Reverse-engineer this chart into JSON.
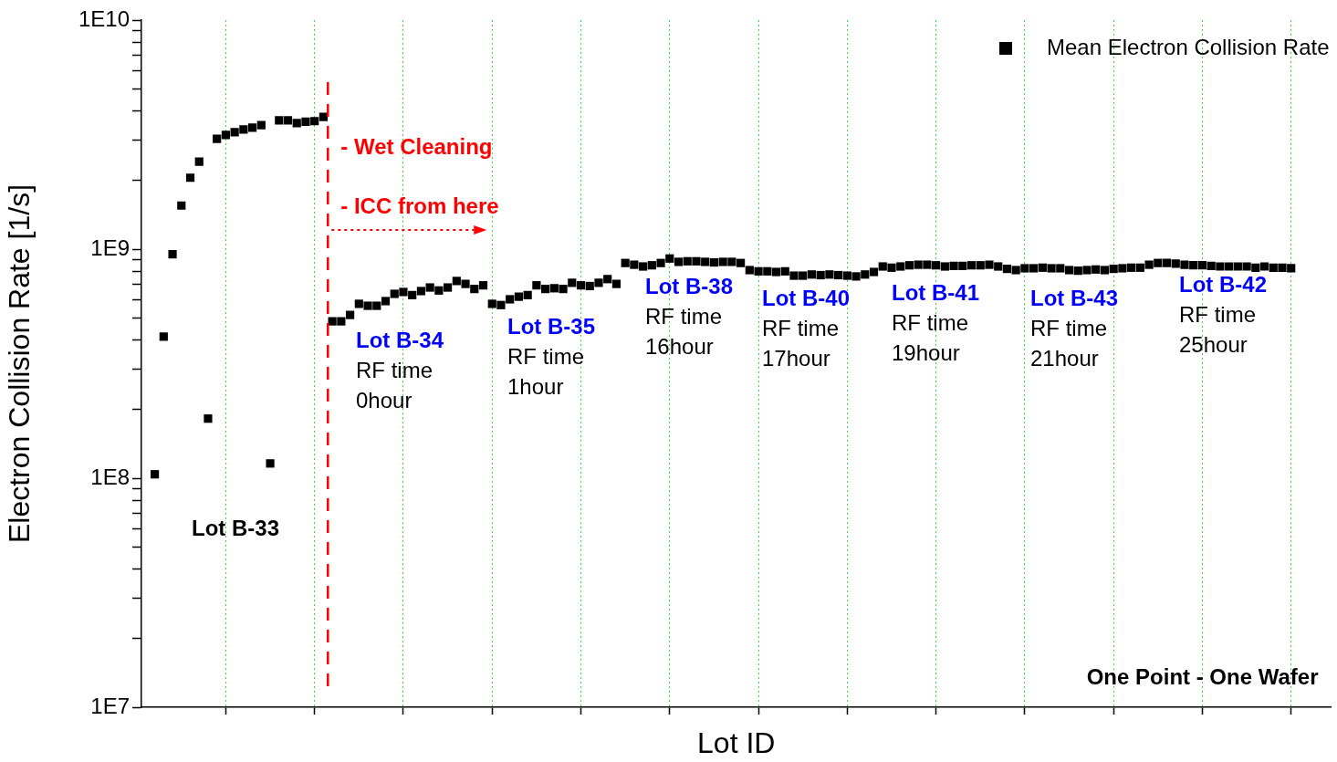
{
  "chart_data": {
    "type": "scatter",
    "xlabel": "Lot ID",
    "ylabel": "Electron Collision Rate [1/s]",
    "log": "y",
    "grid": "x",
    "legend": "top right",
    "marker": "square",
    "tick_labels": "y",
    "categories": [
      null,
      null,
      null,
      null,
      null,
      null,
      null,
      null,
      null,
      null,
      null,
      null,
      null,
      null,
      null,
      null,
      null,
      null,
      null,
      null,
      null,
      null,
      null,
      null,
      null,
      null,
      null,
      null,
      null,
      null,
      null,
      null,
      null,
      null,
      null,
      null,
      null,
      null,
      null,
      null,
      null,
      null,
      null,
      null,
      null,
      null,
      null,
      null,
      null,
      null,
      null,
      null,
      null,
      null,
      null,
      null,
      null,
      null,
      null,
      null,
      null,
      null,
      null,
      null,
      null,
      null,
      null,
      null,
      null,
      null,
      null,
      null,
      null,
      null,
      null,
      null,
      null,
      null,
      null,
      null,
      null,
      null,
      null,
      null,
      null,
      null,
      null,
      null,
      null,
      null,
      null,
      null,
      null,
      null,
      null,
      null,
      null,
      null,
      null,
      null,
      null,
      null,
      null,
      null,
      null,
      null,
      null,
      null,
      null,
      null,
      null,
      null,
      null,
      null,
      null,
      null,
      null,
      null,
      null,
      null,
      null,
      null,
      null,
      null,
      null,
      null,
      null,
      null,
      null,
      null,
      null,
      null,
      null,
      null
    ],
    "ylim": [
      10000000,
      10000000000
    ],
    "yticks": [
      {
        "value": 10000000,
        "label": "1E7"
      },
      {
        "value": 20000000,
        "label": null
      },
      {
        "value": 30000000,
        "label": null
      },
      {
        "value": 40000000,
        "label": null
      },
      {
        "value": 50000000,
        "label": null
      },
      {
        "value": 60000000,
        "label": null
      },
      {
        "value": 70000000,
        "label": null
      },
      {
        "value": 80000000,
        "label": null
      },
      {
        "value": 90000000,
        "label": null
      },
      {
        "value": 100000000,
        "label": "1E8"
      },
      {
        "value": 200000000,
        "label": null
      },
      {
        "value": 300000000,
        "label": null
      },
      {
        "value": 400000000,
        "label": null
      },
      {
        "value": 500000000,
        "label": null
      },
      {
        "value": 600000000,
        "label": null
      },
      {
        "value": 700000000,
        "label": null
      },
      {
        "value": 800000000,
        "label": null
      },
      {
        "value": 900000000,
        "label": null
      },
      {
        "value": 1000000000,
        "label": "1E9"
      },
      {
        "value": 2000000000,
        "label": null
      },
      {
        "value": 3000000000,
        "label": null
      },
      {
        "value": 4000000000,
        "label": null
      },
      {
        "value": 5000000000,
        "label": null
      },
      {
        "value": 6000000000,
        "label": null
      },
      {
        "value": 7000000000,
        "label": null
      },
      {
        "value": 8000000000,
        "label": null
      },
      {
        "value": 9000000000,
        "label": null
      },
      {
        "value": 10000000000,
        "label": "1E10"
      }
    ],
    "series": [
      {
        "name": "Mean Electron Collision Rate",
        "color": "#000000",
        "values": [
          null,
          104000000.0,
          415000000.0,
          950000000.0,
          1550000000.0,
          2050000000.0,
          2410000000.0,
          182000000.0,
          3030000000.0,
          3150000000.0,
          3240000000.0,
          3330000000.0,
          3390000000.0,
          3480000000.0,
          116000000.0,
          3650000000.0,
          3650000000.0,
          3550000000.0,
          3600000000.0,
          3620000000.0,
          3780000000.0,
          484000000.0,
          484000000.0,
          516000000.0,
          577000000.0,
          566000000.0,
          566000000.0,
          593000000.0,
          638000000.0,
          650000000.0,
          630000000.0,
          656000000.0,
          680000000.0,
          660000000.0,
          680000000.0,
          726000000.0,
          705000000.0,
          670000000.0,
          695000000.0,
          577000000.0,
          570000000.0,
          604000000.0,
          620000000.0,
          630000000.0,
          695000000.0,
          670000000.0,
          675000000.0,
          670000000.0,
          713000000.0,
          695000000.0,
          690000000.0,
          713000000.0,
          740000000.0,
          705000000.0,
          870000000.0,
          855000000.0,
          840000000.0,
          850000000.0,
          870000000.0,
          910000000.0,
          880000000.0,
          885000000.0,
          885000000.0,
          880000000.0,
          875000000.0,
          880000000.0,
          880000000.0,
          870000000.0,
          810000000.0,
          800000000.0,
          800000000.0,
          795000000.0,
          800000000.0,
          766000000.0,
          766000000.0,
          775000000.0,
          770000000.0,
          775000000.0,
          770000000.0,
          766000000.0,
          760000000.0,
          775000000.0,
          795000000.0,
          840000000.0,
          830000000.0,
          840000000.0,
          850000000.0,
          855000000.0,
          855000000.0,
          850000000.0,
          840000000.0,
          845000000.0,
          845000000.0,
          850000000.0,
          850000000.0,
          855000000.0,
          840000000.0,
          820000000.0,
          810000000.0,
          825000000.0,
          825000000.0,
          830000000.0,
          825000000.0,
          825000000.0,
          810000000.0,
          805000000.0,
          810000000.0,
          815000000.0,
          810000000.0,
          820000000.0,
          825000000.0,
          830000000.0,
          830000000.0,
          855000000.0,
          870000000.0,
          870000000.0,
          865000000.0,
          855000000.0,
          850000000.0,
          850000000.0,
          845000000.0,
          840000000.0,
          840000000.0,
          840000000.0,
          840000000.0,
          830000000.0,
          840000000.0,
          830000000.0,
          830000000.0,
          825000000.0,
          null,
          null,
          null,
          null
        ]
      }
    ],
    "annotations": [
      "Lot B-33",
      "Lot B-34\nRF time\n0hour",
      "Lot B-35\nRF time\n1hour",
      "Lot B-38\nRF time\n16hour",
      "Lot B-40\nRF time\n17hour",
      "Lot B-41\nRF time\n19hour",
      "Lot B-43\nRF time\n21hour",
      "Lot B-42\nRF time\n25hour",
      "- Wet Cleaning",
      "- ICC from here",
      "One Point - One Wafer"
    ]
  }
}
